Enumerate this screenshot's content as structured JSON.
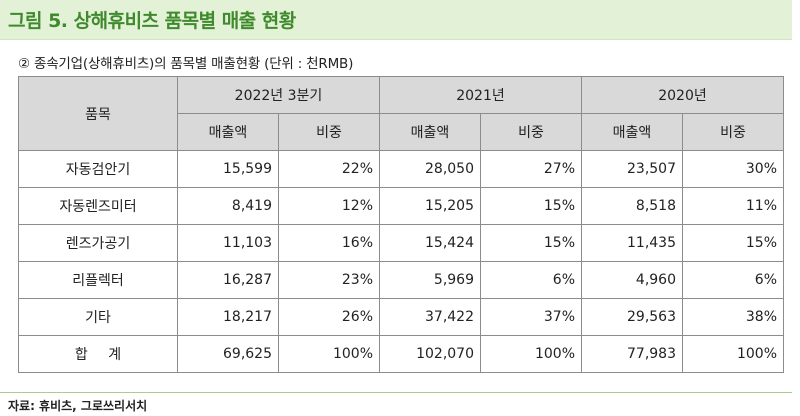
{
  "figure_title": "그림 5. 상해휴비츠 품목별 매출 현황",
  "subtitle": "② 종속기업(상해휴비츠)의 품목별 매출현황 (단위 : 천RMB)",
  "table": {
    "item_header": "품목",
    "periods": [
      "2022년 3분기",
      "2021년",
      "2020년"
    ],
    "sub_headers": {
      "sales": "매출액",
      "share": "비중"
    },
    "rows": [
      {
        "item": "자동검안기",
        "values": [
          "15,599",
          "22%",
          "28,050",
          "27%",
          "23,507",
          "30%"
        ]
      },
      {
        "item": "자동렌즈미터",
        "values": [
          "8,419",
          "12%",
          "15,205",
          "15%",
          "8,518",
          "11%"
        ]
      },
      {
        "item": "렌즈가공기",
        "values": [
          "11,103",
          "16%",
          "15,424",
          "15%",
          "11,435",
          "15%"
        ]
      },
      {
        "item": "리플렉터",
        "values": [
          "16,287",
          "23%",
          "5,969",
          "6%",
          "4,960",
          "6%"
        ]
      },
      {
        "item": "기타",
        "values": [
          "18,217",
          "26%",
          "37,422",
          "37%",
          "29,563",
          "38%"
        ]
      },
      {
        "item": "합 계",
        "values": [
          "69,625",
          "100%",
          "102,070",
          "100%",
          "77,983",
          "100%"
        ]
      }
    ]
  },
  "source": "자료: 휴비츠, 그로쓰리서치"
}
